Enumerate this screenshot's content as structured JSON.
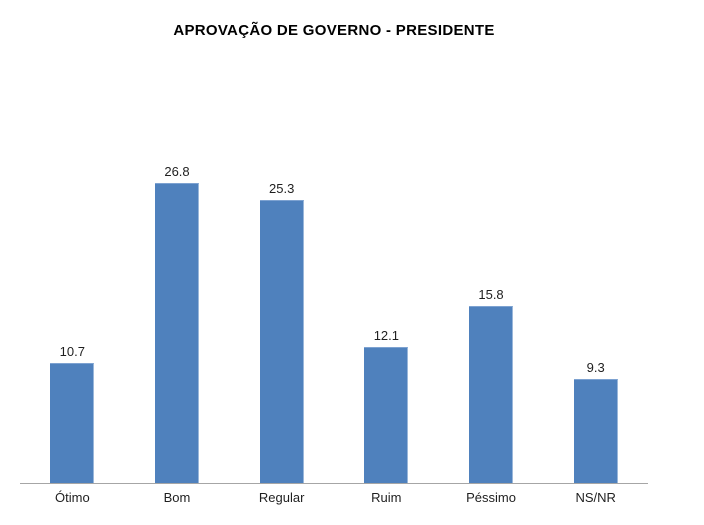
{
  "title": "APROVAÇÃO DE GOVERNO - PRESIDENTE",
  "chart_data": {
    "type": "bar",
    "title": "APROVAÇÃO DE GOVERNO - PRESIDENTE",
    "categories": [
      "Ótimo",
      "Bom",
      "Regular",
      "Ruim",
      "Péssimo",
      "NS/NR"
    ],
    "values": [
      10.7,
      26.8,
      25.3,
      12.1,
      15.8,
      9.3
    ],
    "xlabel": "",
    "ylabel": "",
    "ylim": [
      0,
      30
    ],
    "grid": false,
    "legend": false,
    "data_labels": true,
    "bar_color": "#4f81bd",
    "axis_line_color": "#a6a6a6",
    "label_color": "#1f1f1f",
    "background_color": "#ffffff"
  }
}
